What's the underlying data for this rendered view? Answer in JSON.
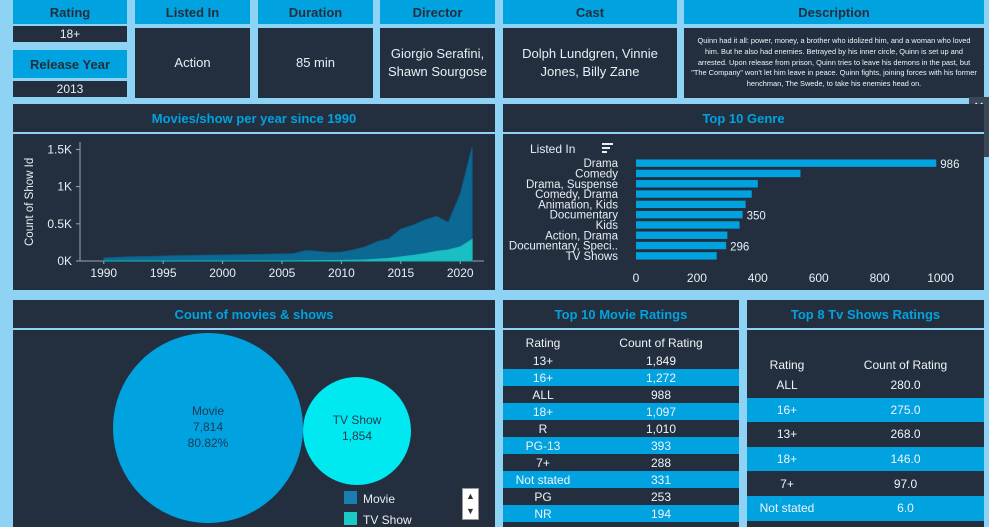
{
  "info": {
    "rating_label": "Rating",
    "rating_value": "18+",
    "release_year_label": "Release Year",
    "release_year_value": "2013",
    "listed_in_label": "Listed In",
    "listed_in_value": "Action",
    "duration_label": "Duration",
    "duration_value": "85 min",
    "director_label": "Director",
    "director_value": "Giorgio Serafini, Shawn Sourgose",
    "cast_label": "Cast",
    "cast_value": "Dolph Lundgren, Vinnie Jones, Billy Zane",
    "description_label": "Description",
    "description_value": "Quinn had it all: power, money, a brother who idolized him, and a woman who loved him. But he also had enemies. Betrayed by his inner circle, Quinn is set up and arrested. Upon release from prison, Quinn tries to leave his demons in the past, but \"The Company\" won't let him leave in peace. Quinn fights, joining forces with his former henchman, The Swede, to take his enemies head on."
  },
  "colors": {
    "background": "#8fd3f4",
    "panel": "#232f3e",
    "accent": "#00a2e0",
    "cyan": "#1bc9c9",
    "tv_show": "#00e8f0"
  },
  "chart_data": [
    {
      "type": "area",
      "title": "Movies/show per year since 1990",
      "xlabel": "",
      "ylabel": "Count of Show Id",
      "xlim": [
        1988,
        2022
      ],
      "ylim": [
        0,
        1600
      ],
      "x_ticks": [
        "1990",
        "1995",
        "2000",
        "2005",
        "2010",
        "2015",
        "2020"
      ],
      "y_ticks": [
        "0K",
        "0.5K",
        "1K",
        "1.5K"
      ],
      "x": [
        1990,
        1992,
        1994,
        1996,
        1998,
        2000,
        2002,
        2004,
        2006,
        2007,
        2008,
        2009,
        2010,
        2011,
        2012,
        2013,
        2014,
        2015,
        2016,
        2017,
        2018,
        2019,
        2020,
        2021
      ],
      "series": [
        {
          "values": [
            40,
            55,
            60,
            70,
            75,
            80,
            85,
            90,
            100,
            140,
            130,
            115,
            120,
            150,
            190,
            260,
            300,
            430,
            480,
            550,
            600,
            520,
            900,
            1530
          ]
        },
        {
          "values": [
            0,
            0,
            0,
            0,
            0,
            0,
            0,
            0,
            2,
            4,
            5,
            6,
            8,
            12,
            15,
            25,
            35,
            55,
            75,
            100,
            130,
            150,
            190,
            290
          ]
        }
      ]
    },
    {
      "type": "bar",
      "title": "Top 10 Genre",
      "legend_title": "Listed In",
      "categories": [
        "Drama",
        "Comedy",
        "Drama, Suspense",
        "Comedy, Drama",
        "Animation, Kids",
        "Documentary",
        "Kids",
        "Action, Drama",
        "Documentary, Speci..",
        "TV Shows"
      ],
      "values": [
        986,
        540,
        400,
        380,
        360,
        350,
        340,
        300,
        296,
        265
      ],
      "data_labels": {
        "0": "986",
        "5": "350",
        "8": "296"
      },
      "xlim": [
        0,
        1100
      ],
      "x_ticks": [
        "0",
        "200",
        "400",
        "600",
        "800",
        "1000"
      ]
    },
    {
      "type": "bubble",
      "title": "Count of movies & shows",
      "items": [
        {
          "name": "Movie",
          "value": 7814,
          "label_value": "7,814",
          "percent": "80.82%"
        },
        {
          "name": "TV Show",
          "value": 1854,
          "label_value": "1,854"
        }
      ],
      "legend": [
        "Movie",
        "TV Show"
      ]
    },
    {
      "type": "table",
      "title": "Top 10 Movie Ratings",
      "columns": [
        "Rating",
        "Count of Rating"
      ],
      "rows": [
        [
          "13+",
          "1,849"
        ],
        [
          "16+",
          "1,272"
        ],
        [
          "ALL",
          "988"
        ],
        [
          "18+",
          "1,097"
        ],
        [
          "R",
          "1,010"
        ],
        [
          "PG-13",
          "393"
        ],
        [
          "7+",
          "288"
        ],
        [
          "Not stated",
          "331"
        ],
        [
          "PG",
          "253"
        ],
        [
          "NR",
          "194"
        ]
      ]
    },
    {
      "type": "table",
      "title": "Top 8 Tv Shows Ratings",
      "columns": [
        "Rating",
        "Count of Rating"
      ],
      "rows": [
        [
          "ALL",
          "280.0"
        ],
        [
          "16+",
          "275.0"
        ],
        [
          "13+",
          "268.0"
        ],
        [
          "18+",
          "146.0"
        ],
        [
          "7+",
          "97.0"
        ],
        [
          "Not stated",
          "6.0"
        ]
      ]
    }
  ]
}
